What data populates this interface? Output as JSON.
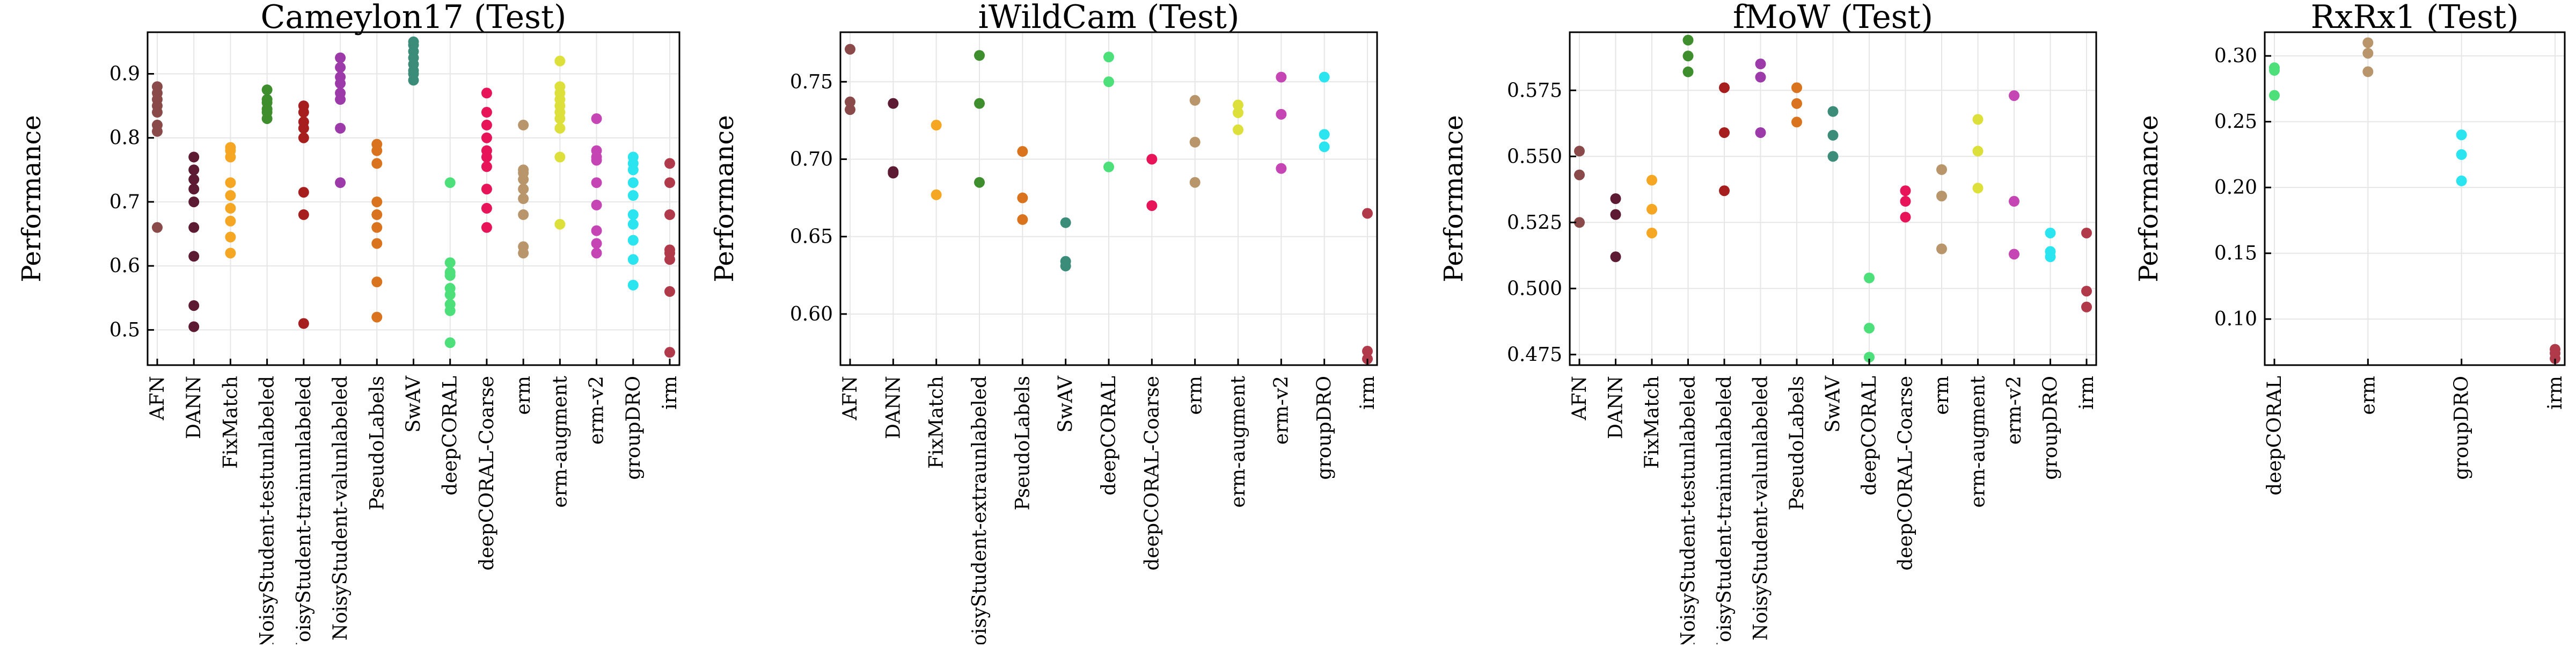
{
  "chart_data": [
    {
      "type": "scatter",
      "title": "Cameylon17 (Test)",
      "ylabel": "Performance",
      "xlabel": "",
      "ylim": [
        0.445,
        0.965
      ],
      "yticks": [
        "0.5",
        "0.6",
        "0.7",
        "0.8",
        "0.9"
      ],
      "ytick_values": [
        0.5,
        0.6,
        0.7,
        0.8,
        0.9
      ],
      "grid": true,
      "categories": [
        "AFN",
        "DANN",
        "FixMatch",
        "NoisyStudent-testunlabeled",
        "NoisyStudent-trainunlabeled",
        "NoisyStudent-valunlabeled",
        "PseudoLabels",
        "SwAV",
        "deepCORAL",
        "deepCORAL-Coarse",
        "erm",
        "erm-augment",
        "erm-v2",
        "groupDRO",
        "irm"
      ],
      "colors": [
        "#8B4A4A",
        "#5C1A33",
        "#F5A623",
        "#3E8E2E",
        "#A61E1E",
        "#9B3AA8",
        "#D9731E",
        "#3C8C7A",
        "#4DE07A",
        "#E8145A",
        "#B8956A",
        "#DDE03A",
        "#C545B5",
        "#2AE5F0",
        "#B03A4A"
      ],
      "series": [
        {
          "values": [
            0.66,
            0.81,
            0.82,
            0.84,
            0.85,
            0.86,
            0.87,
            0.88
          ]
        },
        {
          "values": [
            0.505,
            0.538,
            0.615,
            0.66,
            0.7,
            0.72,
            0.735,
            0.75,
            0.77
          ]
        },
        {
          "values": [
            0.62,
            0.645,
            0.67,
            0.69,
            0.71,
            0.73,
            0.77,
            0.78,
            0.785
          ]
        },
        {
          "values": [
            0.83,
            0.84,
            0.845,
            0.855,
            0.86,
            0.875
          ]
        },
        {
          "values": [
            0.51,
            0.68,
            0.715,
            0.8,
            0.815,
            0.825,
            0.84,
            0.85
          ]
        },
        {
          "values": [
            0.73,
            0.815,
            0.86,
            0.87,
            0.885,
            0.895,
            0.91,
            0.925
          ]
        },
        {
          "values": [
            0.52,
            0.575,
            0.635,
            0.66,
            0.68,
            0.7,
            0.76,
            0.78,
            0.79
          ]
        },
        {
          "values": [
            0.89,
            0.9,
            0.905,
            0.915,
            0.925,
            0.935,
            0.945,
            0.95
          ]
        },
        {
          "values": [
            0.48,
            0.53,
            0.54,
            0.555,
            0.565,
            0.585,
            0.59,
            0.605,
            0.73
          ]
        },
        {
          "values": [
            0.66,
            0.69,
            0.72,
            0.755,
            0.77,
            0.78,
            0.8,
            0.82,
            0.84,
            0.87
          ]
        },
        {
          "values": [
            0.62,
            0.63,
            0.68,
            0.705,
            0.72,
            0.735,
            0.745,
            0.75,
            0.82
          ]
        },
        {
          "values": [
            0.665,
            0.77,
            0.815,
            0.83,
            0.84,
            0.85,
            0.86,
            0.87,
            0.88,
            0.92
          ]
        },
        {
          "values": [
            0.62,
            0.635,
            0.655,
            0.695,
            0.73,
            0.765,
            0.77,
            0.78,
            0.83
          ]
        },
        {
          "values": [
            0.57,
            0.61,
            0.64,
            0.665,
            0.68,
            0.71,
            0.73,
            0.75,
            0.76,
            0.77
          ]
        },
        {
          "values": [
            0.465,
            0.56,
            0.61,
            0.62,
            0.625,
            0.68,
            0.73,
            0.76
          ]
        }
      ]
    },
    {
      "type": "scatter",
      "title": "iWildCam (Test)",
      "ylabel": "Performance",
      "xlabel": "",
      "ylim": [
        0.567,
        0.782
      ],
      "yticks": [
        "0.60",
        "0.65",
        "0.70",
        "0.75"
      ],
      "ytick_values": [
        0.6,
        0.65,
        0.7,
        0.75
      ],
      "grid": true,
      "categories": [
        "AFN",
        "DANN",
        "FixMatch",
        "NoisyStudent-extraunlabeled",
        "PseudoLabels",
        "SwAV",
        "deepCORAL",
        "deepCORAL-Coarse",
        "erm",
        "erm-augment",
        "erm-v2",
        "groupDRO",
        "irm"
      ],
      "colors": [
        "#8B4A4A",
        "#5C1A33",
        "#F5A623",
        "#3E8E2E",
        "#D9731E",
        "#3C8C7A",
        "#4DE07A",
        "#E8145A",
        "#B8956A",
        "#DDE03A",
        "#C545B5",
        "#2AE5F0",
        "#B03A4A"
      ],
      "series": [
        {
          "values": [
            0.732,
            0.737,
            0.771
          ]
        },
        {
          "values": [
            0.691,
            0.692,
            0.736
          ]
        },
        {
          "values": [
            0.677,
            0.722
          ]
        },
        {
          "values": [
            0.685,
            0.736,
            0.767
          ]
        },
        {
          "values": [
            0.661,
            0.675,
            0.705
          ]
        },
        {
          "values": [
            0.631,
            0.634,
            0.659
          ]
        },
        {
          "values": [
            0.695,
            0.75,
            0.766
          ]
        },
        {
          "values": [
            0.67,
            0.7
          ]
        },
        {
          "values": [
            0.685,
            0.711,
            0.738
          ]
        },
        {
          "values": [
            0.719,
            0.73,
            0.735
          ]
        },
        {
          "values": [
            0.694,
            0.729,
            0.753
          ]
        },
        {
          "values": [
            0.708,
            0.716,
            0.753
          ]
        },
        {
          "values": [
            0.571,
            0.576,
            0.665
          ]
        }
      ]
    },
    {
      "type": "scatter",
      "title": "fMoW (Test)",
      "ylabel": "Performance",
      "xlabel": "",
      "ylim": [
        0.471,
        0.597
      ],
      "yticks": [
        "0.475",
        "0.500",
        "0.525",
        "0.550",
        "0.575"
      ],
      "ytick_values": [
        0.475,
        0.5,
        0.525,
        0.55,
        0.575
      ],
      "grid": true,
      "categories": [
        "AFN",
        "DANN",
        "FixMatch",
        "NoisyStudent-testunlabeled",
        "NoisyStudent-trainunlabeled",
        "NoisyStudent-valunlabeled",
        "PseudoLabels",
        "SwAV",
        "deepCORAL",
        "deepCORAL-Coarse",
        "erm",
        "erm-augment",
        "erm-v2",
        "groupDRO",
        "irm"
      ],
      "colors": [
        "#8B4A4A",
        "#5C1A33",
        "#F5A623",
        "#3E8E2E",
        "#A61E1E",
        "#9B3AA8",
        "#D9731E",
        "#3C8C7A",
        "#4DE07A",
        "#E8145A",
        "#B8956A",
        "#DDE03A",
        "#C545B5",
        "#2AE5F0",
        "#B03A4A"
      ],
      "series": [
        {
          "values": [
            0.525,
            0.543,
            0.552
          ]
        },
        {
          "values": [
            0.512,
            0.528,
            0.534
          ]
        },
        {
          "values": [
            0.521,
            0.53,
            0.541
          ]
        },
        {
          "values": [
            0.582,
            0.588,
            0.594
          ]
        },
        {
          "values": [
            0.537,
            0.559,
            0.576
          ]
        },
        {
          "values": [
            0.559,
            0.58,
            0.585
          ]
        },
        {
          "values": [
            0.563,
            0.57,
            0.576
          ]
        },
        {
          "values": [
            0.55,
            0.558,
            0.567
          ]
        },
        {
          "values": [
            0.474,
            0.485,
            0.504
          ]
        },
        {
          "values": [
            0.527,
            0.533,
            0.537
          ]
        },
        {
          "values": [
            0.515,
            0.535,
            0.545
          ]
        },
        {
          "values": [
            0.538,
            0.552,
            0.564
          ]
        },
        {
          "values": [
            0.513,
            0.533,
            0.573
          ]
        },
        {
          "values": [
            0.512,
            0.514,
            0.521
          ]
        },
        {
          "values": [
            0.493,
            0.499,
            0.521
          ]
        }
      ]
    },
    {
      "type": "scatter",
      "title": "RxRx1 (Test)",
      "ylabel": "Performance",
      "xlabel": "",
      "ylim": [
        0.065,
        0.318
      ],
      "yticks": [
        "0.10",
        "0.15",
        "0.20",
        "0.25",
        "0.30"
      ],
      "ytick_values": [
        0.1,
        0.15,
        0.2,
        0.25,
        0.3
      ],
      "grid": true,
      "categories": [
        "deepCORAL",
        "erm",
        "groupDRO",
        "irm"
      ],
      "colors": [
        "#4DE07A",
        "#B8956A",
        "#2AE5F0",
        "#B03A4A"
      ],
      "series": [
        {
          "values": [
            0.27,
            0.289,
            0.291
          ]
        },
        {
          "values": [
            0.288,
            0.302,
            0.31
          ]
        },
        {
          "values": [
            0.205,
            0.225,
            0.24
          ]
        },
        {
          "values": [
            0.07,
            0.074,
            0.077
          ]
        }
      ]
    }
  ]
}
